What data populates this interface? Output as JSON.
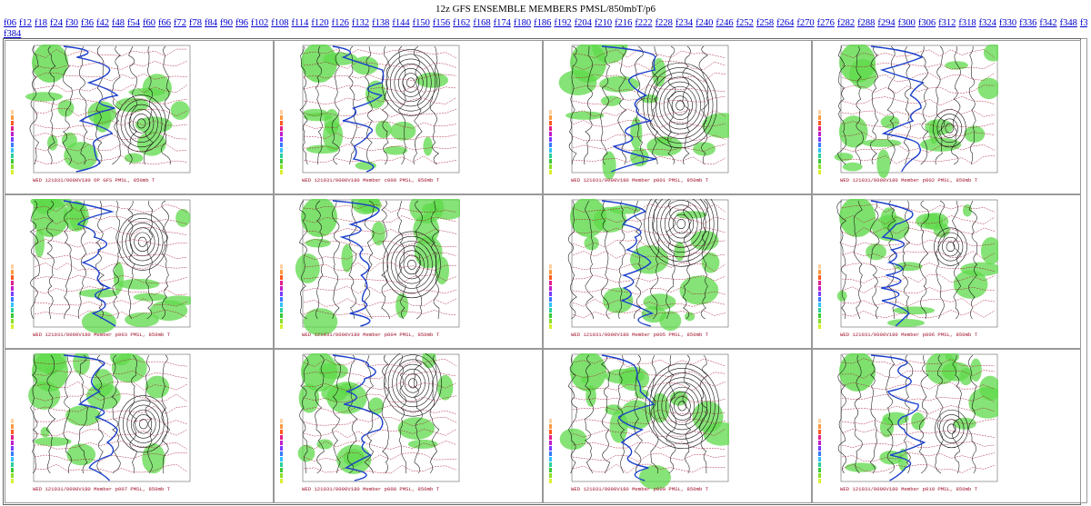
{
  "page": {
    "title": "12z GFS ENSEMBLE MEMBERS PMSL/850mbT/p6"
  },
  "nav": {
    "rows": [
      [
        "f06",
        "f12",
        "f18",
        "f24",
        "f30",
        "f36",
        "f42",
        "f48",
        "f54",
        "f60",
        "f66",
        "f72",
        "f78",
        "f84",
        "f90",
        "f96",
        "f102",
        "f108",
        "f114",
        "f120",
        "f126",
        "f132",
        "f138",
        "f144",
        "f150",
        "f156",
        "f162",
        "f168",
        "f174",
        "f180",
        "f186",
        "f192",
        "f204",
        "f210",
        "f216",
        "f222",
        "f228",
        "f234",
        "f240",
        "f246",
        "f252",
        "f258",
        "f264",
        "f270",
        "f276",
        "f282",
        "f288",
        "f294",
        "f300",
        "f306",
        "f312",
        "f318",
        "f324",
        "f330",
        "f336",
        "f342",
        "f348",
        "f354",
        "f360",
        "f366",
        "f372",
        "f378"
      ],
      [
        "f384"
      ]
    ]
  },
  "panels": [
    {
      "label": "WED 121031/0000V180  OP GFS PMSL, 850mb T"
    },
    {
      "label": "WED 121031/0000V180  Member c000 PMSL, 850mb T"
    },
    {
      "label": "WED 121031/0000V180  Member p001 PMSL, 850mb T"
    },
    {
      "label": "WED 121031/0000V180  Member p002 PMSL, 850mb T"
    },
    {
      "label": "WED 121031/0000V180  Member p003 PMSL, 850mb T"
    },
    {
      "label": "WED 121031/0000V180  Member p004 PMSL, 850mb T"
    },
    {
      "label": "WED 121031/0000V180  Member p005 PMSL, 850mb T"
    },
    {
      "label": "WED 121031/0000V180  Member p006 PMSL, 850mb T"
    },
    {
      "label": "WED 121031/0000V180  Member p007 PMSL, 850mb T"
    },
    {
      "label": "WED 121031/0000V180  Member p008 PMSL, 850mb T"
    },
    {
      "label": "WED 121031/0000V180  Member p009 PMSL, 850mb T"
    },
    {
      "label": "WED 121031/0000V180  Member p010 PMSL, 850mb T"
    }
  ],
  "colors": {
    "link": "#0000cc",
    "precip": "#5ed94a",
    "isobar": "#111111",
    "isotherm": "#a0102a",
    "freezing_line": "#1a3fcc"
  }
}
